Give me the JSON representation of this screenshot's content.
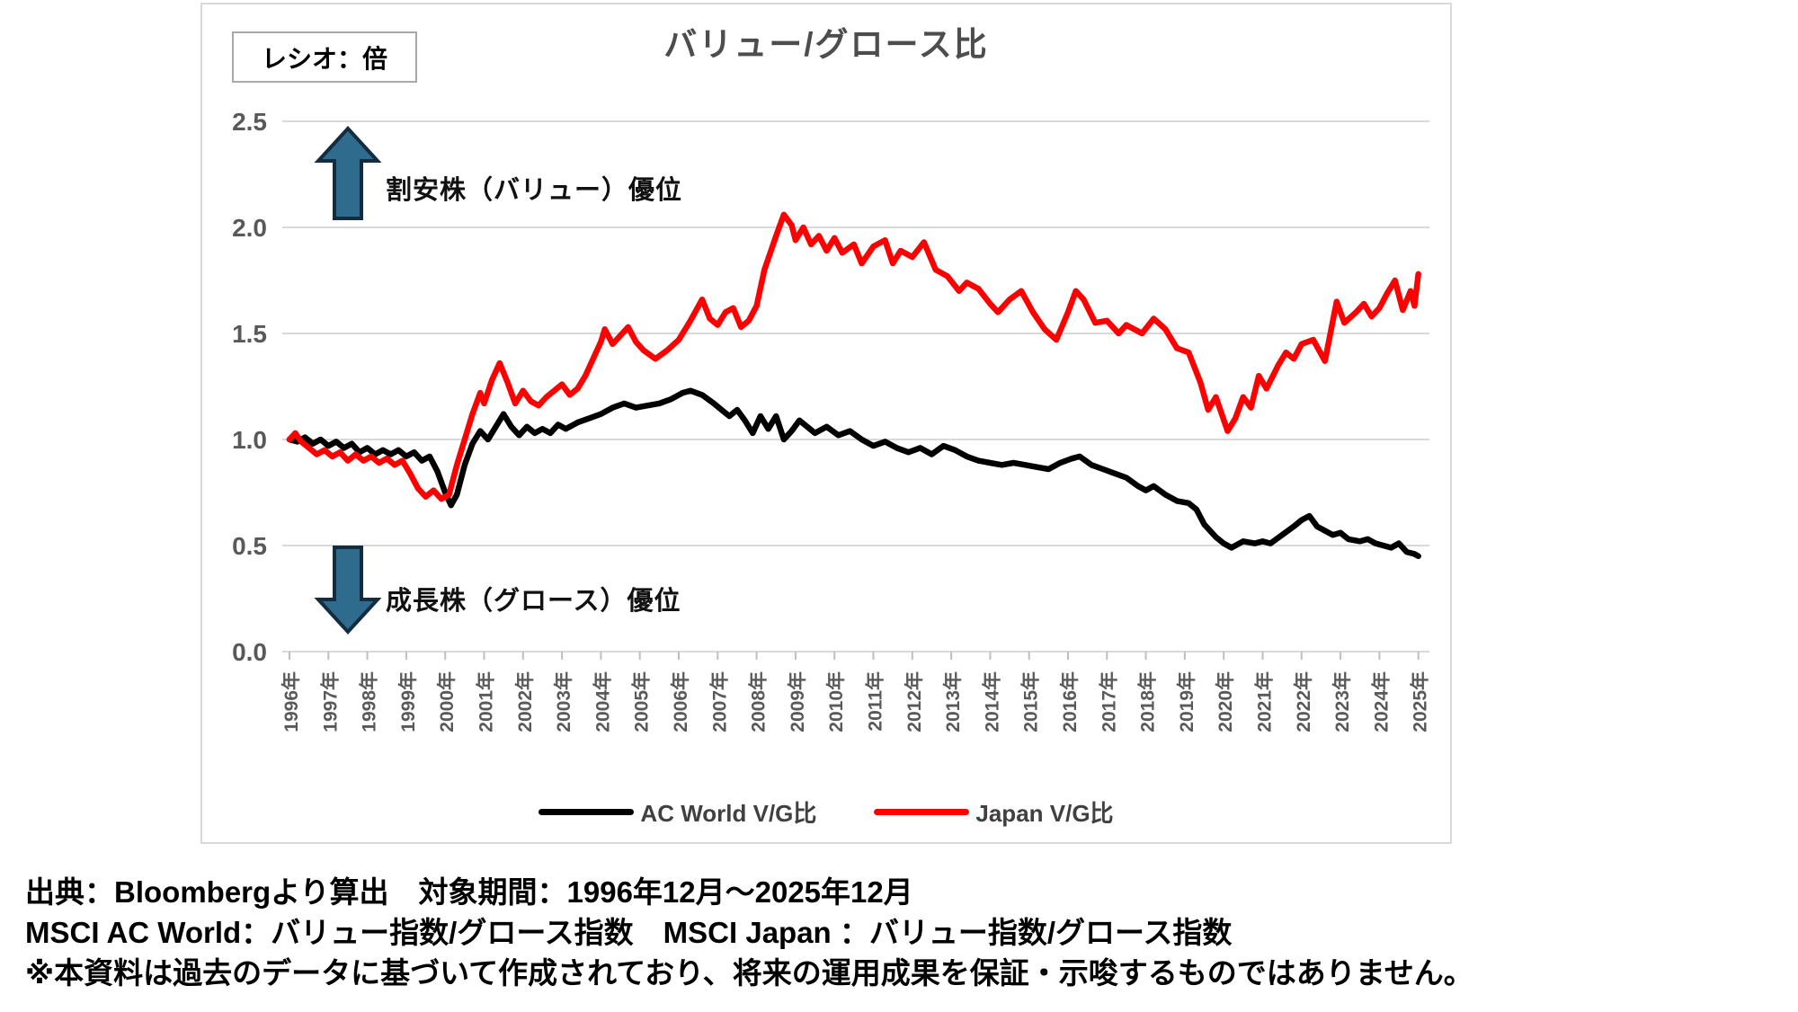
{
  "chart": {
    "title": "バリュー/グロース比",
    "unit_box_label": "レシオ：倍",
    "annotation_up": "割安株（バリュー）優位",
    "annotation_down": "成長株（グロース）優位"
  },
  "legend": {
    "items": [
      {
        "label": "AC World V/G比",
        "color": "#000000"
      },
      {
        "label": "Japan V/G比",
        "color": "#ff0000"
      }
    ]
  },
  "footnotes": {
    "line1": "出典：Bloombergより算出　対象期間：1996年12月～2025年12月",
    "line2": "MSCI AC World：バリュー指数/グロース指数　MSCI Japan ：バリュー指数/グロース指数",
    "line3": "※本資料は過去のデータに基づいて作成されており、将来の運用成果を保証・示唆するものではありません。"
  },
  "colors": {
    "japan_line": "#ff0000",
    "ac_world_line": "#000000",
    "grid": "#d9d9d9",
    "tick": "#bfbfbf",
    "axis_text": "#595959",
    "title_text": "#4d4d4d",
    "arrow_fill": "#2e6b8c",
    "arrow_outline": "#142c40",
    "frame_border": "#d9d9d9",
    "box_border": "#a9a9a9"
  },
  "chart_data": {
    "type": "line",
    "title": "バリュー/グロース比",
    "y_unit": "レシオ：倍",
    "x_unit": "years since 1996-12 (monthly data, Dec 1996 = 1.0)",
    "ylim": [
      0.0,
      2.5
    ],
    "y_tick_step": 0.5,
    "y_ticks": [
      "0.0",
      "0.5",
      "1.0",
      "1.5",
      "2.0",
      "2.5"
    ],
    "x_tick_labels": [
      "1996年",
      "1997年",
      "1998年",
      "1999年",
      "2000年",
      "2001年",
      "2002年",
      "2003年",
      "2004年",
      "2005年",
      "2006年",
      "2007年",
      "2008年",
      "2009年",
      "2010年",
      "2011年",
      "2012年",
      "2013年",
      "2014年",
      "2015年",
      "2016年",
      "2017年",
      "2018年",
      "2019年",
      "2020年",
      "2021年",
      "2022年",
      "2023年",
      "2024年",
      "2025年"
    ],
    "grid": "horizontal",
    "legend_position": "bottom",
    "series": [
      {
        "name": "AC World V/G比",
        "color": "#000000",
        "points": [
          [
            0,
            1.0
          ],
          [
            0.2,
            0.99
          ],
          [
            0.4,
            1.01
          ],
          [
            0.6,
            0.98
          ],
          [
            0.8,
            1.0
          ],
          [
            1.0,
            0.97
          ],
          [
            1.2,
            0.99
          ],
          [
            1.4,
            0.96
          ],
          [
            1.6,
            0.98
          ],
          [
            1.8,
            0.94
          ],
          [
            2.0,
            0.96
          ],
          [
            2.2,
            0.93
          ],
          [
            2.4,
            0.95
          ],
          [
            2.6,
            0.93
          ],
          [
            2.8,
            0.95
          ],
          [
            3.0,
            0.92
          ],
          [
            3.2,
            0.94
          ],
          [
            3.4,
            0.9
          ],
          [
            3.6,
            0.92
          ],
          [
            3.8,
            0.85
          ],
          [
            4.0,
            0.75
          ],
          [
            4.15,
            0.69
          ],
          [
            4.3,
            0.74
          ],
          [
            4.5,
            0.88
          ],
          [
            4.7,
            0.98
          ],
          [
            4.9,
            1.04
          ],
          [
            5.1,
            1.0
          ],
          [
            5.3,
            1.06
          ],
          [
            5.5,
            1.12
          ],
          [
            5.7,
            1.06
          ],
          [
            5.9,
            1.02
          ],
          [
            6.1,
            1.06
          ],
          [
            6.3,
            1.03
          ],
          [
            6.5,
            1.05
          ],
          [
            6.7,
            1.03
          ],
          [
            6.9,
            1.07
          ],
          [
            7.1,
            1.05
          ],
          [
            7.4,
            1.08
          ],
          [
            7.7,
            1.1
          ],
          [
            8.0,
            1.12
          ],
          [
            8.3,
            1.15
          ],
          [
            8.6,
            1.17
          ],
          [
            8.9,
            1.15
          ],
          [
            9.2,
            1.16
          ],
          [
            9.5,
            1.17
          ],
          [
            9.8,
            1.19
          ],
          [
            10.1,
            1.22
          ],
          [
            10.3,
            1.23
          ],
          [
            10.6,
            1.21
          ],
          [
            10.9,
            1.17
          ],
          [
            11.1,
            1.14
          ],
          [
            11.3,
            1.11
          ],
          [
            11.5,
            1.14
          ],
          [
            11.7,
            1.09
          ],
          [
            11.9,
            1.03
          ],
          [
            12.1,
            1.11
          ],
          [
            12.3,
            1.05
          ],
          [
            12.5,
            1.11
          ],
          [
            12.7,
            1.0
          ],
          [
            12.9,
            1.04
          ],
          [
            13.1,
            1.09
          ],
          [
            13.3,
            1.06
          ],
          [
            13.5,
            1.03
          ],
          [
            13.8,
            1.06
          ],
          [
            14.1,
            1.02
          ],
          [
            14.4,
            1.04
          ],
          [
            14.7,
            1.0
          ],
          [
            15.0,
            0.97
          ],
          [
            15.3,
            0.99
          ],
          [
            15.6,
            0.96
          ],
          [
            15.9,
            0.94
          ],
          [
            16.2,
            0.96
          ],
          [
            16.5,
            0.93
          ],
          [
            16.8,
            0.97
          ],
          [
            17.1,
            0.95
          ],
          [
            17.4,
            0.92
          ],
          [
            17.7,
            0.9
          ],
          [
            18.0,
            0.89
          ],
          [
            18.3,
            0.88
          ],
          [
            18.6,
            0.89
          ],
          [
            18.9,
            0.88
          ],
          [
            19.2,
            0.87
          ],
          [
            19.5,
            0.86
          ],
          [
            19.8,
            0.89
          ],
          [
            20.1,
            0.91
          ],
          [
            20.3,
            0.92
          ],
          [
            20.6,
            0.88
          ],
          [
            20.9,
            0.86
          ],
          [
            21.2,
            0.84
          ],
          [
            21.5,
            0.82
          ],
          [
            21.8,
            0.78
          ],
          [
            22.0,
            0.76
          ],
          [
            22.2,
            0.78
          ],
          [
            22.5,
            0.74
          ],
          [
            22.8,
            0.71
          ],
          [
            23.1,
            0.7
          ],
          [
            23.3,
            0.67
          ],
          [
            23.5,
            0.6
          ],
          [
            23.8,
            0.54
          ],
          [
            24.0,
            0.51
          ],
          [
            24.2,
            0.49
          ],
          [
            24.5,
            0.52
          ],
          [
            24.8,
            0.51
          ],
          [
            25.0,
            0.52
          ],
          [
            25.2,
            0.51
          ],
          [
            25.5,
            0.55
          ],
          [
            25.8,
            0.59
          ],
          [
            26.0,
            0.62
          ],
          [
            26.2,
            0.64
          ],
          [
            26.4,
            0.59
          ],
          [
            26.6,
            0.57
          ],
          [
            26.8,
            0.55
          ],
          [
            27.0,
            0.56
          ],
          [
            27.2,
            0.53
          ],
          [
            27.5,
            0.52
          ],
          [
            27.7,
            0.53
          ],
          [
            27.9,
            0.51
          ],
          [
            28.1,
            0.5
          ],
          [
            28.3,
            0.49
          ],
          [
            28.5,
            0.51
          ],
          [
            28.7,
            0.47
          ],
          [
            28.9,
            0.46
          ],
          [
            29.0,
            0.45
          ]
        ]
      },
      {
        "name": "Japan V/G比",
        "color": "#ff0000",
        "points": [
          [
            0,
            1.0
          ],
          [
            0.15,
            1.03
          ],
          [
            0.3,
            0.99
          ],
          [
            0.5,
            0.96
          ],
          [
            0.7,
            0.93
          ],
          [
            0.9,
            0.95
          ],
          [
            1.1,
            0.92
          ],
          [
            1.3,
            0.94
          ],
          [
            1.5,
            0.9
          ],
          [
            1.7,
            0.93
          ],
          [
            1.9,
            0.9
          ],
          [
            2.1,
            0.92
          ],
          [
            2.3,
            0.89
          ],
          [
            2.5,
            0.91
          ],
          [
            2.7,
            0.88
          ],
          [
            2.9,
            0.9
          ],
          [
            3.1,
            0.84
          ],
          [
            3.3,
            0.77
          ],
          [
            3.5,
            0.73
          ],
          [
            3.7,
            0.76
          ],
          [
            3.9,
            0.72
          ],
          [
            4.1,
            0.74
          ],
          [
            4.3,
            0.88
          ],
          [
            4.5,
            1.0
          ],
          [
            4.7,
            1.12
          ],
          [
            4.9,
            1.22
          ],
          [
            5.0,
            1.17
          ],
          [
            5.2,
            1.28
          ],
          [
            5.4,
            1.36
          ],
          [
            5.6,
            1.27
          ],
          [
            5.8,
            1.17
          ],
          [
            6.0,
            1.23
          ],
          [
            6.2,
            1.18
          ],
          [
            6.4,
            1.16
          ],
          [
            6.6,
            1.2
          ],
          [
            6.8,
            1.23
          ],
          [
            7.0,
            1.26
          ],
          [
            7.2,
            1.21
          ],
          [
            7.4,
            1.24
          ],
          [
            7.6,
            1.3
          ],
          [
            7.8,
            1.38
          ],
          [
            8.0,
            1.46
          ],
          [
            8.1,
            1.52
          ],
          [
            8.3,
            1.45
          ],
          [
            8.5,
            1.49
          ],
          [
            8.7,
            1.53
          ],
          [
            8.9,
            1.46
          ],
          [
            9.1,
            1.42
          ],
          [
            9.4,
            1.38
          ],
          [
            9.7,
            1.42
          ],
          [
            10.0,
            1.47
          ],
          [
            10.3,
            1.56
          ],
          [
            10.6,
            1.66
          ],
          [
            10.8,
            1.57
          ],
          [
            11.0,
            1.54
          ],
          [
            11.2,
            1.6
          ],
          [
            11.4,
            1.62
          ],
          [
            11.6,
            1.53
          ],
          [
            11.8,
            1.56
          ],
          [
            12.0,
            1.63
          ],
          [
            12.2,
            1.8
          ],
          [
            12.5,
            1.96
          ],
          [
            12.7,
            2.06
          ],
          [
            12.9,
            2.01
          ],
          [
            13.0,
            1.94
          ],
          [
            13.2,
            2.0
          ],
          [
            13.4,
            1.92
          ],
          [
            13.6,
            1.96
          ],
          [
            13.8,
            1.89
          ],
          [
            14.0,
            1.95
          ],
          [
            14.2,
            1.88
          ],
          [
            14.5,
            1.92
          ],
          [
            14.7,
            1.83
          ],
          [
            15.0,
            1.91
          ],
          [
            15.3,
            1.94
          ],
          [
            15.5,
            1.83
          ],
          [
            15.7,
            1.89
          ],
          [
            16.0,
            1.86
          ],
          [
            16.3,
            1.93
          ],
          [
            16.6,
            1.8
          ],
          [
            16.9,
            1.77
          ],
          [
            17.2,
            1.7
          ],
          [
            17.4,
            1.74
          ],
          [
            17.7,
            1.71
          ],
          [
            18.0,
            1.64
          ],
          [
            18.2,
            1.6
          ],
          [
            18.5,
            1.66
          ],
          [
            18.8,
            1.7
          ],
          [
            19.1,
            1.6
          ],
          [
            19.4,
            1.52
          ],
          [
            19.7,
            1.47
          ],
          [
            20.0,
            1.6
          ],
          [
            20.2,
            1.7
          ],
          [
            20.4,
            1.66
          ],
          [
            20.7,
            1.55
          ],
          [
            21.0,
            1.56
          ],
          [
            21.3,
            1.5
          ],
          [
            21.5,
            1.54
          ],
          [
            21.9,
            1.5
          ],
          [
            22.2,
            1.57
          ],
          [
            22.5,
            1.52
          ],
          [
            22.8,
            1.43
          ],
          [
            23.1,
            1.41
          ],
          [
            23.4,
            1.27
          ],
          [
            23.6,
            1.14
          ],
          [
            23.8,
            1.2
          ],
          [
            24.1,
            1.04
          ],
          [
            24.3,
            1.1
          ],
          [
            24.5,
            1.2
          ],
          [
            24.7,
            1.15
          ],
          [
            24.9,
            1.3
          ],
          [
            25.1,
            1.24
          ],
          [
            25.4,
            1.35
          ],
          [
            25.6,
            1.41
          ],
          [
            25.8,
            1.38
          ],
          [
            26.0,
            1.45
          ],
          [
            26.3,
            1.47
          ],
          [
            26.6,
            1.37
          ],
          [
            26.9,
            1.65
          ],
          [
            27.1,
            1.55
          ],
          [
            27.4,
            1.6
          ],
          [
            27.6,
            1.64
          ],
          [
            27.8,
            1.58
          ],
          [
            28.0,
            1.62
          ],
          [
            28.2,
            1.69
          ],
          [
            28.4,
            1.75
          ],
          [
            28.6,
            1.61
          ],
          [
            28.8,
            1.7
          ],
          [
            28.9,
            1.63
          ],
          [
            29.0,
            1.78
          ]
        ]
      }
    ]
  }
}
